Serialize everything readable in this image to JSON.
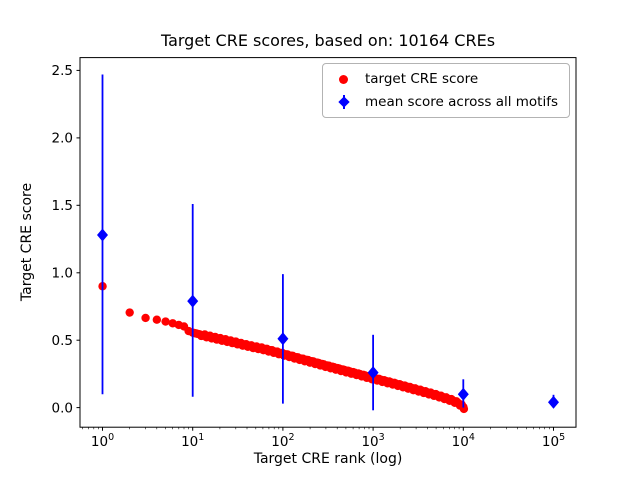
{
  "chart_data": {
    "type": "scatter",
    "title": "Target CRE scores, based on: 10164 CREs",
    "xlabel": "Target CRE rank (log)",
    "ylabel": "Target CRE score",
    "xscale": "log",
    "grid": false,
    "legend_position": "upper right",
    "xlim": [
      0.5623413,
      177827.94
    ],
    "ylim": [
      -0.145,
      2.595
    ],
    "xticks": [
      1,
      10,
      100,
      1000,
      10000,
      100000
    ],
    "yticks": [
      0.0,
      0.5,
      1.0,
      1.5,
      2.0,
      2.5
    ],
    "series": [
      {
        "name": "target CRE score",
        "type": "scatter",
        "marker": "circle",
        "color": "#ff0000",
        "rank_max": 10164,
        "anchors": [
          [
            1,
            0.9
          ],
          [
            2,
            0.705
          ],
          [
            3,
            0.665
          ],
          [
            4,
            0.652
          ],
          [
            5,
            0.638
          ],
          [
            6,
            0.625
          ],
          [
            7,
            0.613
          ],
          [
            8,
            0.602
          ],
          [
            9,
            0.568
          ],
          [
            10,
            0.556
          ],
          [
            12,
            0.543
          ],
          [
            15,
            0.527
          ],
          [
            19,
            0.512
          ],
          [
            24,
            0.497
          ],
          [
            30,
            0.482
          ],
          [
            38,
            0.465
          ],
          [
            48,
            0.45
          ],
          [
            60,
            0.437
          ],
          [
            75,
            0.42
          ],
          [
            95,
            0.402
          ],
          [
            120,
            0.383
          ],
          [
            150,
            0.365
          ],
          [
            190,
            0.347
          ],
          [
            240,
            0.329
          ],
          [
            300,
            0.311
          ],
          [
            380,
            0.293
          ],
          [
            480,
            0.275
          ],
          [
            600,
            0.258
          ],
          [
            760,
            0.24
          ],
          [
            950,
            0.222
          ],
          [
            1200,
            0.205
          ],
          [
            1500,
            0.188
          ],
          [
            1900,
            0.17
          ],
          [
            2400,
            0.152
          ],
          [
            3000,
            0.134
          ],
          [
            3800,
            0.115
          ],
          [
            4800,
            0.096
          ],
          [
            6000,
            0.076
          ],
          [
            7600,
            0.053
          ],
          [
            9000,
            0.03
          ],
          [
            10164,
            0.0
          ]
        ]
      },
      {
        "name": "mean score across all motifs",
        "type": "errorbar",
        "marker": "diamond",
        "color": "#0000ff",
        "x": [
          1,
          10,
          100,
          1000,
          10000,
          100000
        ],
        "y": [
          1.28,
          0.79,
          0.51,
          0.26,
          0.1,
          0.04
        ],
        "y_lo": [
          0.1,
          0.08,
          0.03,
          -0.02,
          0.0,
          0.0
        ],
        "y_hi": [
          2.47,
          1.51,
          0.99,
          0.54,
          0.21,
          0.095
        ]
      }
    ]
  }
}
